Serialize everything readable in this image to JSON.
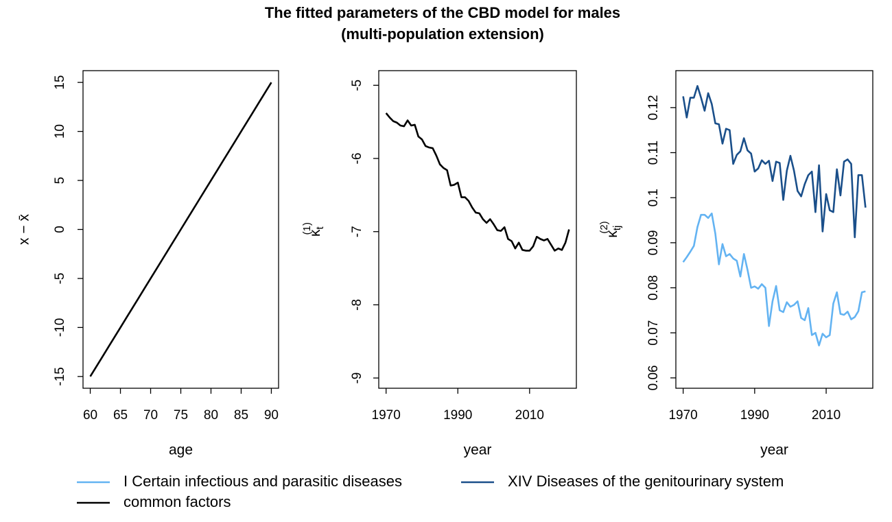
{
  "title": "The fitted parameters of the CBD model for males",
  "subtitle": "(multi-population extension)",
  "chart_data": [
    {
      "type": "line",
      "xlabel": "age",
      "ylabel": "x − x̄",
      "x": [
        60,
        61,
        62,
        63,
        64,
        65,
        66,
        67,
        68,
        69,
        70,
        71,
        72,
        73,
        74,
        75,
        76,
        77,
        78,
        79,
        80,
        81,
        82,
        83,
        84,
        85,
        86,
        87,
        88,
        89,
        90
      ],
      "series": [
        {
          "name": "common factors",
          "color": "#000000",
          "values": [
            -15,
            -14,
            -13,
            -12,
            -11,
            -10,
            -9,
            -8,
            -7,
            -6,
            -5,
            -4,
            -3,
            -2,
            -1,
            0,
            1,
            2,
            3,
            4,
            5,
            6,
            7,
            8,
            9,
            10,
            11,
            12,
            13,
            14,
            15
          ]
        }
      ],
      "xlim": [
        58.8,
        91.2
      ],
      "xticks": [
        60,
        65,
        70,
        75,
        80,
        85,
        90
      ],
      "ylim": [
        -16.2,
        16.2
      ],
      "yticks": [
        -15,
        -10,
        -5,
        0,
        5,
        10,
        15
      ]
    },
    {
      "type": "line",
      "xlabel": "year",
      "ylabel": {
        "base": "κ",
        "sub": "t",
        "sup": "(1)"
      },
      "x": [
        1970,
        1971,
        1972,
        1973,
        1974,
        1975,
        1976,
        1977,
        1978,
        1979,
        1980,
        1981,
        1982,
        1983,
        1984,
        1985,
        1986,
        1987,
        1988,
        1989,
        1990,
        1991,
        1992,
        1993,
        1994,
        1995,
        1996,
        1997,
        1998,
        1999,
        2000,
        2001,
        2002,
        2003,
        2004,
        2005,
        2006,
        2007,
        2008,
        2009,
        2010,
        2011,
        2012,
        2013,
        2014,
        2015,
        2016,
        2017,
        2018,
        2019,
        2020,
        2021
      ],
      "series": [
        {
          "name": "common factors",
          "color": "#000000",
          "values": [
            -5.38,
            -5.44,
            -5.49,
            -5.51,
            -5.55,
            -5.56,
            -5.48,
            -5.55,
            -5.54,
            -5.7,
            -5.74,
            -5.83,
            -5.85,
            -5.86,
            -5.96,
            -6.08,
            -6.13,
            -6.16,
            -6.37,
            -6.36,
            -6.33,
            -6.53,
            -6.53,
            -6.58,
            -6.67,
            -6.74,
            -6.75,
            -6.83,
            -6.88,
            -6.83,
            -6.9,
            -6.98,
            -6.99,
            -6.94,
            -7.1,
            -7.13,
            -7.23,
            -7.15,
            -7.25,
            -7.26,
            -7.26,
            -7.2,
            -7.07,
            -7.1,
            -7.12,
            -7.1,
            -7.18,
            -7.26,
            -7.23,
            -7.25,
            -7.15,
            -6.97
          ]
        }
      ],
      "xlim": [
        1967.96,
        2023.04
      ],
      "xticks": [
        1970,
        1990,
        2010
      ],
      "ylim": [
        -9.14,
        -4.8
      ],
      "yticks": [
        -9,
        -8,
        -7,
        -6,
        -5
      ]
    },
    {
      "type": "line",
      "xlabel": "year",
      "ylabel": {
        "base": "κ",
        "sub": "tj",
        "sup": "(2)"
      },
      "x": [
        1970,
        1971,
        1972,
        1973,
        1974,
        1975,
        1976,
        1977,
        1978,
        1979,
        1980,
        1981,
        1982,
        1983,
        1984,
        1985,
        1986,
        1987,
        1988,
        1989,
        1990,
        1991,
        1992,
        1993,
        1994,
        1995,
        1996,
        1997,
        1998,
        1999,
        2000,
        2001,
        2002,
        2003,
        2004,
        2005,
        2006,
        2007,
        2008,
        2009,
        2010,
        2011,
        2012,
        2013,
        2014,
        2015,
        2016,
        2017,
        2018,
        2019,
        2020,
        2021
      ],
      "series": [
        {
          "name": "I Certain infectious and parasitic diseases",
          "color": "#63b3f2",
          "values": [
            0.0857,
            0.0868,
            0.088,
            0.0893,
            0.0935,
            0.0962,
            0.0962,
            0.0955,
            0.0965,
            0.092,
            0.0852,
            0.0897,
            0.087,
            0.0875,
            0.0865,
            0.086,
            0.0825,
            0.0875,
            0.084,
            0.08,
            0.0803,
            0.0798,
            0.0808,
            0.08,
            0.0715,
            0.077,
            0.0804,
            0.075,
            0.0746,
            0.0768,
            0.0758,
            0.0762,
            0.077,
            0.0733,
            0.0728,
            0.0755,
            0.0695,
            0.07,
            0.0672,
            0.0698,
            0.069,
            0.0695,
            0.0765,
            0.079,
            0.0742,
            0.074,
            0.0747,
            0.073,
            0.0735,
            0.0748,
            0.079,
            0.0792
          ]
        },
        {
          "name": "XIV Diseases of the genitourinary system",
          "color": "#1a4f8a",
          "values": [
            0.1225,
            0.1178,
            0.1222,
            0.1222,
            0.1248,
            0.1222,
            0.1193,
            0.1232,
            0.1208,
            0.1165,
            0.1163,
            0.112,
            0.1153,
            0.115,
            0.1075,
            0.1095,
            0.1103,
            0.1132,
            0.1105,
            0.1098,
            0.1058,
            0.1065,
            0.1083,
            0.1075,
            0.1082,
            0.1037,
            0.108,
            0.1077,
            0.0995,
            0.106,
            0.1093,
            0.106,
            0.1015,
            0.1003,
            0.103,
            0.105,
            0.1058,
            0.0968,
            0.1072,
            0.0925,
            0.1008,
            0.0972,
            0.0968,
            0.1063,
            0.1005,
            0.108,
            0.1085,
            0.1075,
            0.0912,
            0.105,
            0.105,
            0.0978
          ]
        }
      ],
      "xlim": [
        1967.96,
        2023.04
      ],
      "xticks": [
        1970,
        1990,
        2010
      ],
      "ylim": [
        0.0577,
        0.1282
      ],
      "yticks": [
        0.06,
        0.07,
        0.08,
        0.09,
        0.1,
        0.11,
        0.12
      ]
    }
  ]
}
